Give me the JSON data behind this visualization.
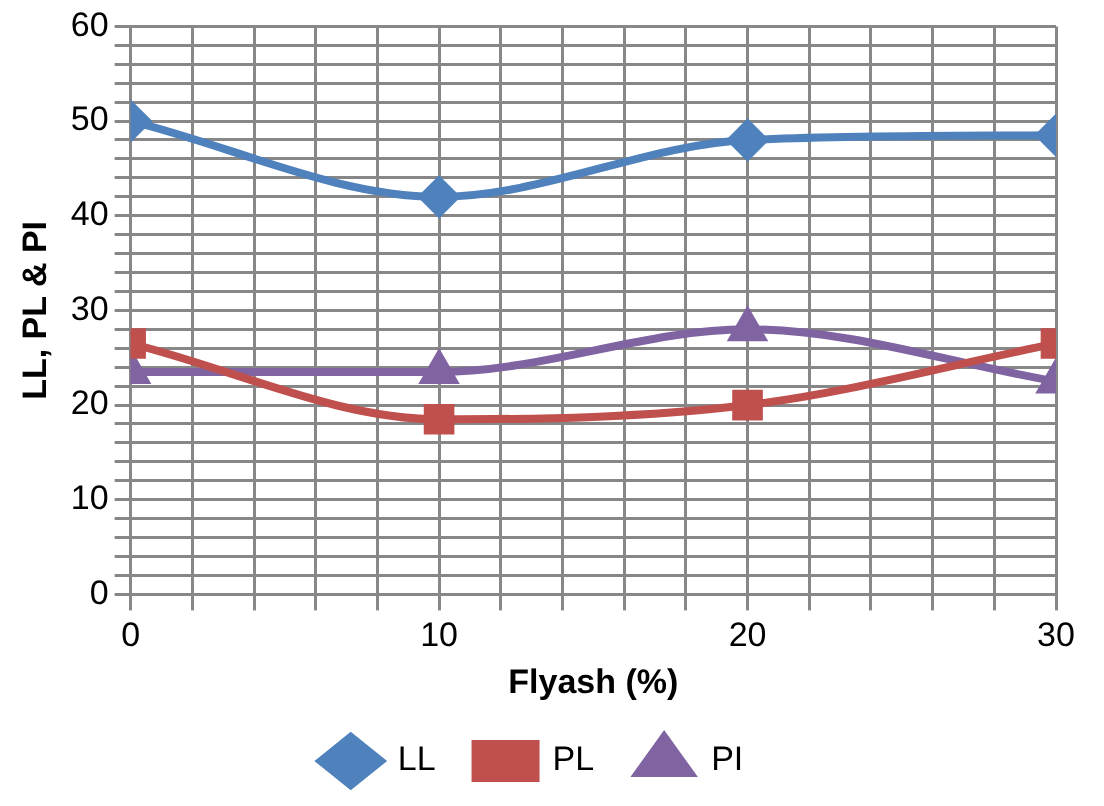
{
  "chart_data": {
    "type": "line",
    "xlabel": "Flyash (%)",
    "ylabel": "LL, PL & PI",
    "x": [
      0,
      10,
      20,
      30
    ],
    "series": [
      {
        "name": "LL",
        "color": "#4f81bd",
        "marker": "diamond",
        "values": [
          50,
          42,
          48,
          48.5
        ]
      },
      {
        "name": "PL",
        "color": "#c0504d",
        "marker": "square",
        "values": [
          26.5,
          18.5,
          20,
          26.5
        ]
      },
      {
        "name": "PI",
        "color": "#8064a2",
        "marker": "triangle",
        "values": [
          23.5,
          23.5,
          28,
          22.5
        ]
      }
    ],
    "xlim": [
      0,
      30
    ],
    "xticks": [
      0,
      {
        "value": 2,
        "label": null
      },
      {
        "value": 4,
        "label": null
      },
      {
        "value": 6,
        "label": null
      },
      {
        "value": 8,
        "label": null
      },
      10,
      {
        "value": 12,
        "label": null
      },
      {
        "value": 14,
        "label": null
      },
      {
        "value": 16,
        "label": null
      },
      {
        "value": 18,
        "label": null
      },
      20,
      {
        "value": 22,
        "label": null
      },
      {
        "value": 24,
        "label": null
      },
      {
        "value": 26,
        "label": null
      },
      {
        "value": 28,
        "label": null
      },
      30
    ],
    "ylim": [
      0,
      60
    ],
    "yticks": [
      0,
      {
        "value": 2,
        "label": null
      },
      {
        "value": 4,
        "label": null
      },
      {
        "value": 6,
        "label": null
      },
      {
        "value": 8,
        "label": null
      },
      10,
      {
        "value": 12,
        "label": null
      },
      {
        "value": 14,
        "label": null
      },
      {
        "value": 16,
        "label": null
      },
      {
        "value": 18,
        "label": null
      },
      20,
      {
        "value": 22,
        "label": null
      },
      {
        "value": 24,
        "label": null
      },
      {
        "value": 26,
        "label": null
      },
      {
        "value": 28,
        "label": null
      },
      30,
      {
        "value": 32,
        "label": null
      },
      {
        "value": 34,
        "label": null
      },
      {
        "value": 36,
        "label": null
      },
      {
        "value": 38,
        "label": null
      },
      40,
      {
        "value": 42,
        "label": null
      },
      {
        "value": 44,
        "label": null
      },
      {
        "value": 46,
        "label": null
      },
      {
        "value": 48,
        "label": null
      },
      50,
      {
        "value": 52,
        "label": null
      },
      {
        "value": 54,
        "label": null
      },
      {
        "value": 56,
        "label": null
      },
      {
        "value": 58,
        "label": null
      },
      60
    ],
    "grid": true,
    "legend": "bottom",
    "line_style": "solid"
  }
}
